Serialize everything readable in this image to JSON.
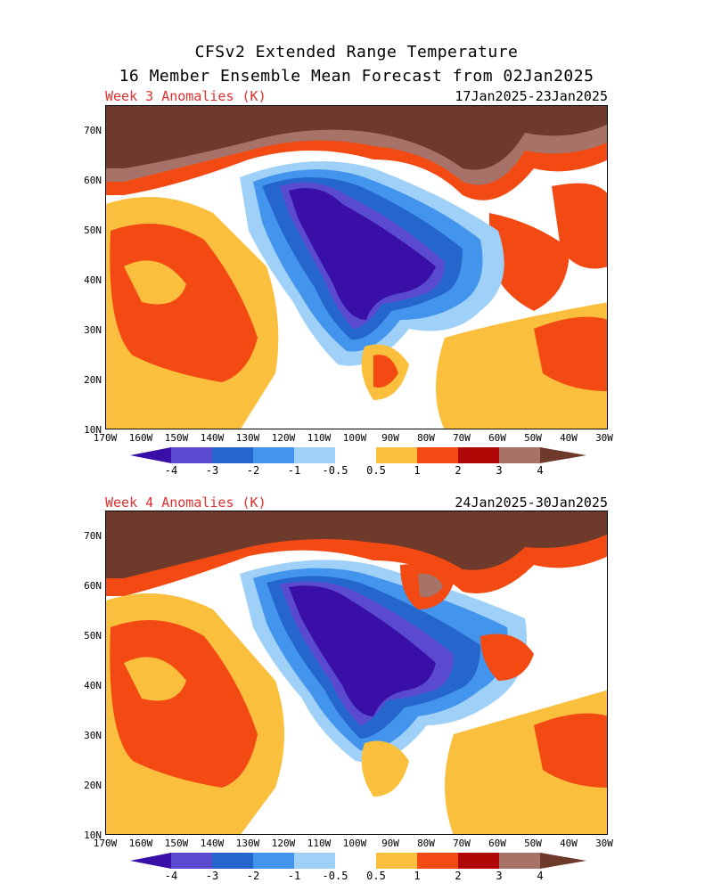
{
  "header": {
    "title_line1": "CFSv2 Extended Range Temperature",
    "title_line2": "16 Member Ensemble Mean Forecast from 02Jan2025"
  },
  "panels": [
    {
      "label": "Week 3 Anomalies (K)",
      "dates": "17Jan2025-23Jan2025"
    },
    {
      "label": "Week 4 Anomalies (K)",
      "dates": "24Jan2025-30Jan2025"
    }
  ],
  "axes": {
    "lat_labels": [
      "70N",
      "60N",
      "50N",
      "40N",
      "30N",
      "20N",
      "10N"
    ],
    "lon_labels": [
      "170W",
      "160W",
      "150W",
      "140W",
      "130W",
      "120W",
      "110W",
      "100W",
      "90W",
      "80W",
      "70W",
      "60W",
      "50W",
      "40W",
      "30W"
    ]
  },
  "colorbar": {
    "labels": [
      "-4",
      "-3",
      "-2",
      "-1",
      "-0.5",
      "0.5",
      "1",
      "2",
      "3",
      "4"
    ],
    "colors": [
      "#3a0fa8",
      "#5a4ad0",
      "#2566cc",
      "#4394ec",
      "#9fd0f8",
      "#ffffff",
      "#fbbf3e",
      "#f24a12",
      "#b00806",
      "#a77369",
      "#6e3a2c"
    ]
  },
  "map_colors": {
    "deep_cold": "#3a0fa8",
    "cold": "#5a4ad0",
    "cool": "#2566cc",
    "mild_cool": "#4394ec",
    "slight_cool": "#9fd0f8",
    "neutral": "#ffffff",
    "slight_warm": "#fbbf3e",
    "warm": "#f24a12",
    "hot": "#b00806",
    "very_hot": "#a77369",
    "extreme": "#6e3a2c"
  }
}
